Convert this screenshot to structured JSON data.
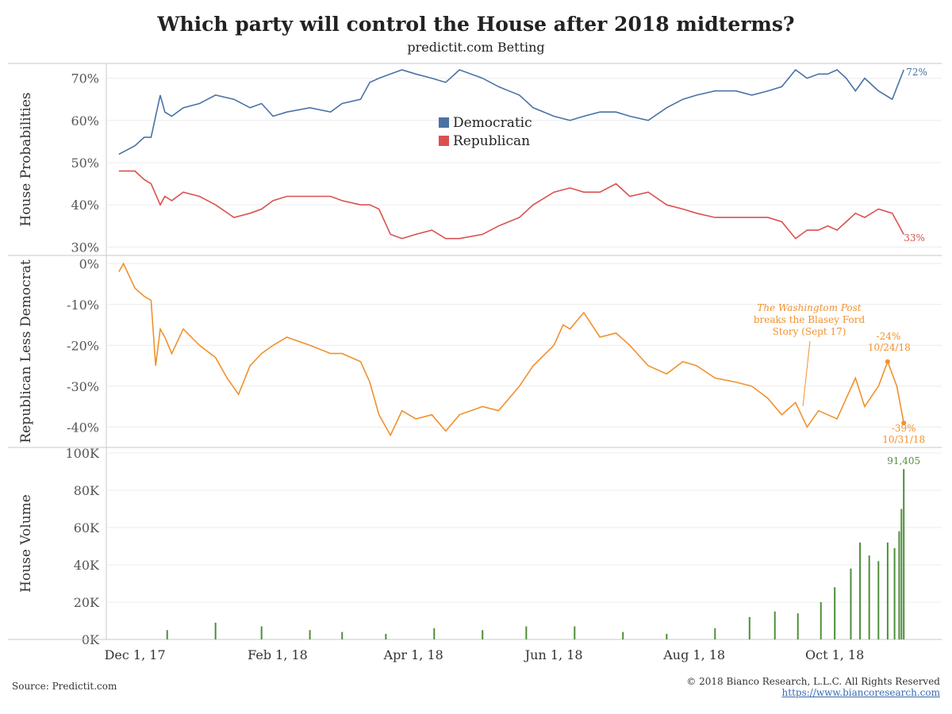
{
  "header": {
    "title": "Which party will control the House after 2018 midterms?",
    "subtitle": "predictit.com Betting"
  },
  "footer": {
    "source": "Source: Predictit.com",
    "copyright": "© 2018 Bianco Research, L.L.C. All Rights Reserved",
    "link": "https://www.biancoresearch.com"
  },
  "colors": {
    "democratic": "#4a72a5",
    "republican": "#d9514e",
    "spread": "#f0912e",
    "volume": "#4e8f3a"
  },
  "chart_data": [
    {
      "type": "line",
      "ylabel": "House Probabilities",
      "yticks": [
        "70%",
        "60%",
        "50%",
        "40%",
        "30%"
      ],
      "ylim": [
        28,
        73
      ],
      "legend": [
        "Democratic",
        "Republican"
      ],
      "end_labels": [
        "72%",
        "33%"
      ],
      "series": [
        {
          "name": "Democratic",
          "x": [
            "2017-11-24",
            "2017-12-01",
            "2017-12-05",
            "2017-12-08",
            "2017-12-12",
            "2017-12-14",
            "2017-12-17",
            "2017-12-22",
            "2017-12-29",
            "2018-01-05",
            "2018-01-13",
            "2018-01-20",
            "2018-01-25",
            "2018-01-30",
            "2018-02-05",
            "2018-02-15",
            "2018-02-24",
            "2018-03-01",
            "2018-03-09",
            "2018-03-13",
            "2018-03-17",
            "2018-03-22",
            "2018-03-27",
            "2018-04-02",
            "2018-04-09",
            "2018-04-15",
            "2018-04-21",
            "2018-05-01",
            "2018-05-08",
            "2018-05-17",
            "2018-05-23",
            "2018-06-01",
            "2018-06-08",
            "2018-06-14",
            "2018-06-21",
            "2018-06-28",
            "2018-07-04",
            "2018-07-12",
            "2018-07-20",
            "2018-07-27",
            "2018-08-02",
            "2018-08-10",
            "2018-08-19",
            "2018-08-26",
            "2018-09-02",
            "2018-09-08",
            "2018-09-14",
            "2018-09-19",
            "2018-09-24",
            "2018-09-28",
            "2018-10-02",
            "2018-10-06",
            "2018-10-10",
            "2018-10-14",
            "2018-10-20",
            "2018-10-26",
            "2018-10-31"
          ],
          "values": [
            52,
            54,
            56,
            56,
            66,
            62,
            61,
            63,
            64,
            66,
            65,
            63,
            64,
            61,
            62,
            63,
            62,
            64,
            65,
            69,
            70,
            71,
            72,
            71,
            70,
            69,
            72,
            70,
            68,
            66,
            63,
            61,
            60,
            61,
            62,
            62,
            61,
            60,
            63,
            65,
            66,
            67,
            67,
            66,
            67,
            68,
            72,
            70,
            71,
            71,
            72,
            70,
            67,
            70,
            67,
            65,
            72
          ]
        },
        {
          "name": "Republican",
          "x": [
            "2017-11-24",
            "2017-12-01",
            "2017-12-05",
            "2017-12-08",
            "2017-12-12",
            "2017-12-14",
            "2017-12-17",
            "2017-12-22",
            "2017-12-29",
            "2018-01-05",
            "2018-01-13",
            "2018-01-20",
            "2018-01-25",
            "2018-01-30",
            "2018-02-05",
            "2018-02-15",
            "2018-02-24",
            "2018-03-01",
            "2018-03-09",
            "2018-03-13",
            "2018-03-17",
            "2018-03-22",
            "2018-03-27",
            "2018-04-02",
            "2018-04-09",
            "2018-04-15",
            "2018-04-21",
            "2018-05-01",
            "2018-05-08",
            "2018-05-17",
            "2018-05-23",
            "2018-06-01",
            "2018-06-08",
            "2018-06-14",
            "2018-06-21",
            "2018-06-28",
            "2018-07-04",
            "2018-07-12",
            "2018-07-20",
            "2018-07-27",
            "2018-08-02",
            "2018-08-10",
            "2018-08-19",
            "2018-08-26",
            "2018-09-02",
            "2018-09-08",
            "2018-09-14",
            "2018-09-19",
            "2018-09-24",
            "2018-09-28",
            "2018-10-02",
            "2018-10-06",
            "2018-10-10",
            "2018-10-14",
            "2018-10-20",
            "2018-10-26",
            "2018-10-31"
          ],
          "values": [
            48,
            48,
            46,
            45,
            40,
            42,
            41,
            43,
            42,
            40,
            37,
            38,
            39,
            41,
            42,
            42,
            42,
            41,
            40,
            40,
            39,
            33,
            32,
            33,
            34,
            32,
            32,
            33,
            35,
            37,
            40,
            43,
            44,
            43,
            43,
            45,
            42,
            43,
            40,
            39,
            38,
            37,
            37,
            37,
            37,
            36,
            32,
            34,
            34,
            35,
            34,
            36,
            38,
            37,
            39,
            38,
            33
          ]
        }
      ]
    },
    {
      "type": "line",
      "ylabel": "Republican Less Democrat",
      "yticks": [
        "0%",
        "-10%",
        "-20%",
        "-30%",
        "-40%"
      ],
      "ylim": [
        -45,
        2
      ],
      "series": [
        {
          "name": "Republican Less Democrat",
          "x": [
            "2017-11-24",
            "2017-11-26",
            "2017-12-01",
            "2017-12-05",
            "2017-12-08",
            "2017-12-10",
            "2017-12-12",
            "2017-12-14",
            "2017-12-17",
            "2017-12-22",
            "2017-12-29",
            "2018-01-05",
            "2018-01-10",
            "2018-01-15",
            "2018-01-20",
            "2018-01-25",
            "2018-01-30",
            "2018-02-05",
            "2018-02-15",
            "2018-02-24",
            "2018-03-01",
            "2018-03-09",
            "2018-03-13",
            "2018-03-17",
            "2018-03-22",
            "2018-03-27",
            "2018-04-02",
            "2018-04-09",
            "2018-04-15",
            "2018-04-21",
            "2018-05-01",
            "2018-05-08",
            "2018-05-17",
            "2018-05-23",
            "2018-06-01",
            "2018-06-05",
            "2018-06-08",
            "2018-06-14",
            "2018-06-21",
            "2018-06-28",
            "2018-07-04",
            "2018-07-12",
            "2018-07-20",
            "2018-07-27",
            "2018-08-02",
            "2018-08-10",
            "2018-08-19",
            "2018-08-26",
            "2018-09-02",
            "2018-09-08",
            "2018-09-14",
            "2018-09-19",
            "2018-09-24",
            "2018-09-28",
            "2018-10-02",
            "2018-10-06",
            "2018-10-10",
            "2018-10-14",
            "2018-10-20",
            "2018-10-24",
            "2018-10-28",
            "2018-10-31"
          ],
          "values": [
            -2,
            0,
            -6,
            -8,
            -9,
            -25,
            -16,
            -18,
            -22,
            -16,
            -20,
            -23,
            -28,
            -32,
            -25,
            -22,
            -20,
            -18,
            -20,
            -22,
            -22,
            -24,
            -29,
            -37,
            -42,
            -36,
            -38,
            -37,
            -41,
            -37,
            -35,
            -36,
            -30,
            -25,
            -20,
            -15,
            -16,
            -12,
            -18,
            -17,
            -20,
            -25,
            -27,
            -24,
            -25,
            -28,
            -29,
            -30,
            -33,
            -37,
            -34,
            -40,
            -36,
            -37,
            -38,
            -33,
            -28,
            -35,
            -30,
            -24,
            -30,
            -39
          ]
        }
      ],
      "annotations": {
        "story_italic": "The Washingtom Post",
        "story_line2": "breaks the Blasey Ford",
        "story_line3": "Story (Sept 17)",
        "peak_value": "-24%",
        "peak_date": "10/24/18",
        "end_value": "-39%",
        "end_date": "10/31/18"
      }
    },
    {
      "type": "bar",
      "ylabel": "House Volume",
      "yticks": [
        "100K",
        "80K",
        "60K",
        "40K",
        "20K",
        "0K"
      ],
      "ylim": [
        0,
        100000
      ],
      "last_label": "91,405",
      "x": [
        "2017-12-15",
        "2018-01-05",
        "2018-01-25",
        "2018-02-15",
        "2018-03-01",
        "2018-03-20",
        "2018-04-10",
        "2018-05-01",
        "2018-05-20",
        "2018-06-10",
        "2018-07-01",
        "2018-07-20",
        "2018-08-10",
        "2018-08-25",
        "2018-09-05",
        "2018-09-15",
        "2018-09-25",
        "2018-10-01",
        "2018-10-08",
        "2018-10-12",
        "2018-10-16",
        "2018-10-20",
        "2018-10-24",
        "2018-10-27",
        "2018-10-29",
        "2018-10-30",
        "2018-10-31"
      ],
      "values": [
        5000,
        9000,
        7000,
        5000,
        4000,
        3000,
        6000,
        5000,
        7000,
        7000,
        4000,
        3000,
        6000,
        12000,
        15000,
        14000,
        20000,
        28000,
        38000,
        52000,
        45000,
        42000,
        52000,
        49000,
        58000,
        70000,
        91405
      ]
    }
  ],
  "xaxis": {
    "ticks": [
      "Dec 1, 17",
      "Feb 1, 18",
      "Apr 1, 18",
      "Jun 1, 18",
      "Aug 1, 18",
      "Oct 1, 18"
    ]
  }
}
